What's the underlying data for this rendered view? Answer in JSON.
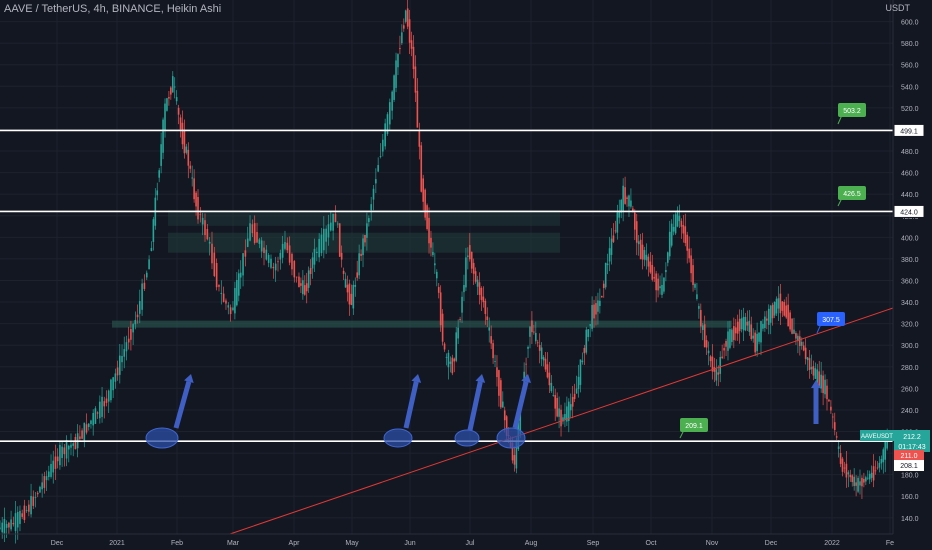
{
  "header": {
    "title": "AAVE / TetherUS, 4h, BINANCE, Heikin Ashi"
  },
  "axis": {
    "currency": "USDT"
  },
  "chart_data": {
    "type": "candlestick",
    "title": "AAVE / TetherUS, 4h, BINANCE, Heikin Ashi",
    "x_ticks": [
      "Dec",
      "2021",
      "Feb",
      "Mar",
      "Apr",
      "May",
      "Jun",
      "Jul",
      "Aug",
      "Sep",
      "Oct",
      "Nov",
      "Dec",
      "2022",
      "Fe"
    ],
    "y_ticks": [
      600,
      580,
      560,
      540,
      520,
      500,
      480,
      460,
      440,
      420,
      400,
      380,
      360,
      340,
      320,
      300,
      280,
      260,
      240,
      220,
      200,
      180,
      160,
      140
    ],
    "ylim": [
      125,
      620
    ],
    "trend_path": [
      [
        0.0,
        130
      ],
      [
        0.02,
        135
      ],
      [
        0.04,
        150
      ],
      [
        0.06,
        175
      ],
      [
        0.08,
        200
      ],
      [
        0.1,
        210
      ],
      [
        0.12,
        230
      ],
      [
        0.14,
        250
      ],
      [
        0.16,
        290
      ],
      [
        0.18,
        330
      ],
      [
        0.195,
        380
      ],
      [
        0.205,
        450
      ],
      [
        0.215,
        520
      ],
      [
        0.225,
        545
      ],
      [
        0.235,
        500
      ],
      [
        0.245,
        470
      ],
      [
        0.255,
        430
      ],
      [
        0.27,
        400
      ],
      [
        0.285,
        350
      ],
      [
        0.3,
        330
      ],
      [
        0.31,
        360
      ],
      [
        0.325,
        410
      ],
      [
        0.34,
        390
      ],
      [
        0.355,
        370
      ],
      [
        0.37,
        395
      ],
      [
        0.385,
        360
      ],
      [
        0.395,
        350
      ],
      [
        0.405,
        380
      ],
      [
        0.42,
        400
      ],
      [
        0.435,
        420
      ],
      [
        0.445,
        360
      ],
      [
        0.455,
        340
      ],
      [
        0.465,
        380
      ],
      [
        0.475,
        410
      ],
      [
        0.49,
        470
      ],
      [
        0.505,
        520
      ],
      [
        0.515,
        570
      ],
      [
        0.525,
        610
      ],
      [
        0.535,
        560
      ],
      [
        0.545,
        450
      ],
      [
        0.555,
        400
      ],
      [
        0.565,
        360
      ],
      [
        0.575,
        290
      ],
      [
        0.585,
        280
      ],
      [
        0.595,
        330
      ],
      [
        0.605,
        390
      ],
      [
        0.615,
        360
      ],
      [
        0.625,
        340
      ],
      [
        0.635,
        300
      ],
      [
        0.645,
        260
      ],
      [
        0.655,
        220
      ],
      [
        0.665,
        190
      ],
      [
        0.675,
        260
      ],
      [
        0.685,
        320
      ],
      [
        0.695,
        300
      ],
      [
        0.705,
        280
      ],
      [
        0.715,
        250
      ],
      [
        0.725,
        230
      ],
      [
        0.735,
        240
      ],
      [
        0.745,
        260
      ],
      [
        0.755,
        300
      ],
      [
        0.765,
        330
      ],
      [
        0.775,
        340
      ],
      [
        0.785,
        380
      ],
      [
        0.795,
        410
      ],
      [
        0.805,
        440
      ],
      [
        0.815,
        430
      ],
      [
        0.825,
        390
      ],
      [
        0.835,
        380
      ],
      [
        0.845,
        360
      ],
      [
        0.855,
        350
      ],
      [
        0.865,
        400
      ],
      [
        0.875,
        420
      ],
      [
        0.885,
        400
      ],
      [
        0.895,
        360
      ],
      [
        0.905,
        320
      ],
      [
        0.915,
        290
      ],
      [
        0.925,
        270
      ],
      [
        0.935,
        300
      ],
      [
        0.945,
        310
      ],
      [
        0.955,
        320
      ],
      [
        0.965,
        320
      ],
      [
        0.975,
        300
      ],
      [
        0.985,
        320
      ],
      [
        0.995,
        330
      ],
      [
        1.005,
        340
      ],
      [
        1.015,
        330
      ],
      [
        1.025,
        310
      ],
      [
        1.035,
        300
      ],
      [
        1.045,
        280
      ],
      [
        1.055,
        270
      ],
      [
        1.065,
        260
      ],
      [
        1.075,
        230
      ],
      [
        1.085,
        190
      ],
      [
        1.095,
        180
      ],
      [
        1.105,
        170
      ],
      [
        1.115,
        175
      ],
      [
        1.125,
        180
      ],
      [
        1.135,
        190
      ],
      [
        1.145,
        210
      ]
    ],
    "horizontal_levels": [
      499.1,
      424.0,
      211.0
    ],
    "level_labels": [
      "499.1",
      "424.0"
    ],
    "callouts": [
      {
        "text": "503.2",
        "color": "#4caf50"
      },
      {
        "text": "426.5",
        "color": "#4caf50"
      },
      {
        "text": "307.5",
        "color": "#2962ff"
      },
      {
        "text": "209.1",
        "color": "#4caf50"
      }
    ],
    "price_tags": [
      {
        "text": "AAVEUSDT",
        "color": "#26a69a"
      },
      {
        "text": "212.2",
        "color": "#26a69a"
      },
      {
        "text": "01:17:43",
        "color": "#26a69a"
      },
      {
        "text": "211.0",
        "color": "#ef5350"
      },
      {
        "text": "208.1",
        "color": "#ffffff"
      }
    ],
    "support_zone_levels": [
      320,
      395,
      418
    ]
  }
}
